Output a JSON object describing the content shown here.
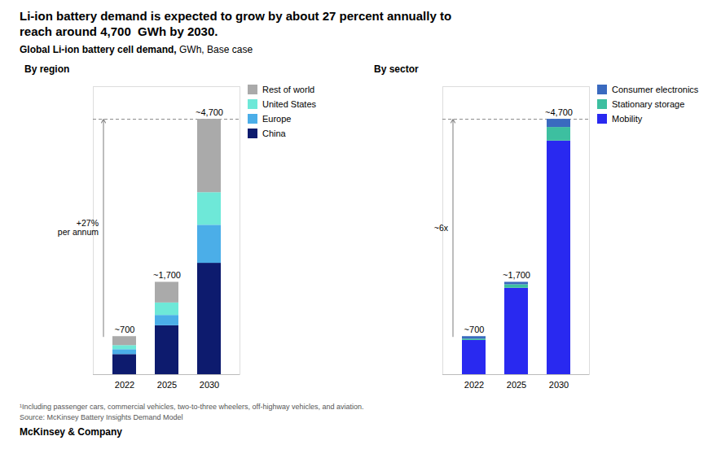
{
  "title": "Li-ion battery demand is expected to grow by about 27 percent annually to\nreach around 4,700  GWh by 2030.",
  "subtitle": [
    "Global Li-ion battery cell demand,",
    " GWh, Base case"
  ],
  "annotations": [
    "¹Including passenger cars, commercial vehicles, two-to-three wheelers, off-highway vehicles, and aviation.",
    "Source: McKinsey Battery Insights Demand Model",
    "McKinsey & Company"
  ],
  "chart_data": [
    {
      "type": "bar",
      "stacked": true,
      "title": "By region",
      "categories": [
        "2022",
        "2025",
        "2030"
      ],
      "series": [
        {
          "name": "China",
          "color": "#0d1b6e",
          "values": [
            370,
            900,
            2050
          ]
        },
        {
          "name": "Europe",
          "color": "#4baee8",
          "values": [
            90,
            190,
            700
          ]
        },
        {
          "name": "United States",
          "color": "#6ee8d8",
          "values": [
            75,
            230,
            600
          ]
        },
        {
          "name": "Rest of world",
          "color": "#aaaaaa",
          "values": [
            165,
            380,
            1350
          ]
        }
      ],
      "totals": {
        "values": [
          700,
          1700,
          4700
        ],
        "value_labels": [
          "~700",
          "~1,700",
          "~4,700"
        ]
      },
      "reference_lines": [
        {
          "y": 4700,
          "line_style": "dashed"
        }
      ],
      "annotations": [
        {
          "text": "+27%\nper annum",
          "y_start": 700,
          "y_end": 4700
        }
      ],
      "ylim": [
        0,
        5300
      ],
      "tick_labels": "x",
      "legend": "upper right"
    },
    {
      "type": "bar",
      "stacked": true,
      "title": "By sector",
      "categories": [
        "2022",
        "2025",
        "2030"
      ],
      "series": [
        {
          "name": "Mobility",
          "color": "#2929f0",
          "values": [
            630,
            1590,
            4300
          ]
        },
        {
          "name": "Stationary storage",
          "color": "#3dbfa0",
          "values": [
            25,
            65,
            250
          ]
        },
        {
          "name": "Consumer electronics",
          "color": "#3a6abf",
          "values": [
            45,
            45,
            150
          ]
        }
      ],
      "totals": {
        "values": [
          700,
          1700,
          4700
        ],
        "value_labels": [
          "~700",
          "~1,700",
          "~4,700"
        ]
      },
      "reference_lines": [
        {
          "y": 4700,
          "line_style": "dashed"
        }
      ],
      "annotations": [
        {
          "text": "~6x",
          "y_start": 700,
          "y_end": 4700
        }
      ],
      "ylim": [
        0,
        5300
      ],
      "tick_labels": "x",
      "legend": "upper right"
    }
  ]
}
